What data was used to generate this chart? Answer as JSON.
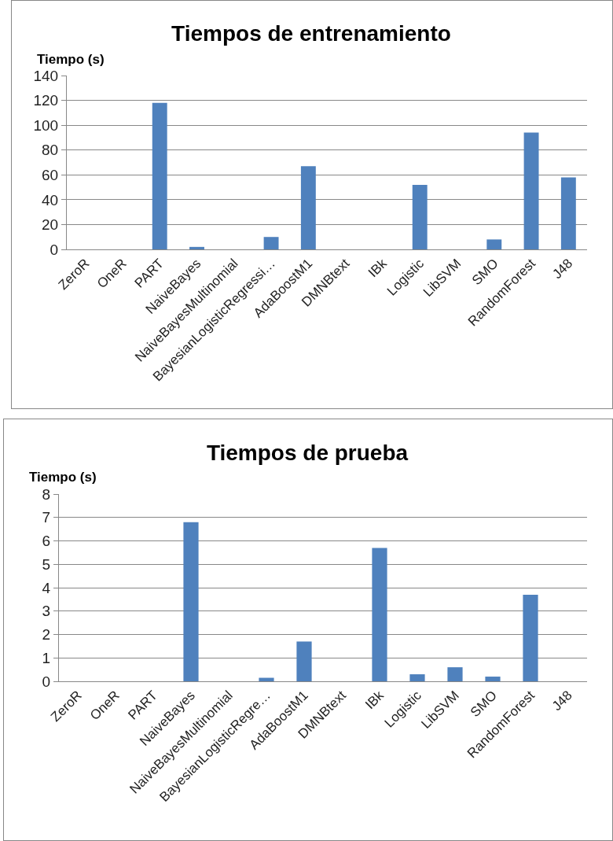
{
  "chart_data": [
    {
      "type": "bar",
      "title": "Tiempos de entrenamiento",
      "ylabel": "Tiempo (s)",
      "categories": [
        "ZeroR",
        "OneR",
        "PART",
        "NaiveBayes",
        "NaiveBayesMultinomial",
        "BayesianLogisticRegressi…",
        "AdaBoostM1",
        "DMNBtext",
        "IBk",
        "Logistic",
        "LibSVM",
        "SMO",
        "RandomForest",
        "J48"
      ],
      "values": [
        0,
        0,
        118,
        2,
        0,
        10,
        67,
        0,
        0,
        52,
        0,
        8,
        94,
        58
      ],
      "color": "#4f81bd",
      "ylim": [
        0,
        140
      ],
      "yticks": [
        0,
        20,
        40,
        60,
        80,
        100,
        120,
        140
      ],
      "grid": "y",
      "legend": false
    },
    {
      "type": "bar",
      "title": "Tiempos de prueba",
      "ylabel": "Tiempo (s)",
      "categories": [
        "ZeroR",
        "OneR",
        "PART",
        "NaiveBayes",
        "NaiveBayesMultinomial",
        "BayesianLogisticRegre…",
        "AdaBoostM1",
        "DMNBtext",
        "IBk",
        "Logistic",
        "LibSVM",
        "SMO",
        "RandomForest",
        "J48"
      ],
      "values": [
        0,
        0,
        0,
        6.8,
        0,
        0.15,
        1.7,
        0,
        5.7,
        0.3,
        0.6,
        0.2,
        3.7,
        0
      ],
      "color": "#4f81bd",
      "ylim": [
        0,
        8
      ],
      "yticks": [
        0,
        1,
        2,
        3,
        4,
        5,
        6,
        7,
        8
      ],
      "grid": "y",
      "legend": false
    }
  ]
}
